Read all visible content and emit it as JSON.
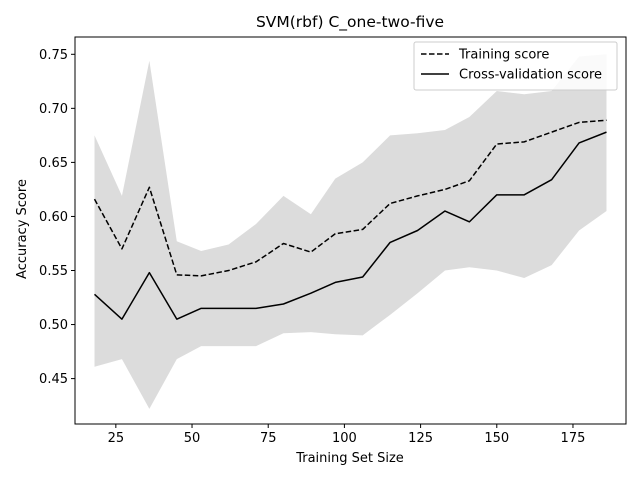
{
  "chart_data": {
    "type": "line",
    "title": "SVM(rbf) C_one-two-five",
    "xlabel": "Training Set Size",
    "ylabel": "Accuracy Score",
    "xlim": [
      11.6,
      192.4
    ],
    "ylim": [
      0.408,
      0.766
    ],
    "xticks": [
      25,
      50,
      75,
      100,
      125,
      150,
      175
    ],
    "yticks": [
      0.45,
      0.5,
      0.55,
      0.6,
      0.65,
      0.7,
      0.75
    ],
    "ytick_labels": [
      "0.45",
      "0.50",
      "0.55",
      "0.60",
      "0.65",
      "0.70",
      "0.75"
    ],
    "grid": false,
    "legend": "top-right",
    "x": [
      18,
      27,
      36,
      45,
      53,
      62,
      71,
      80,
      89,
      97,
      106,
      115,
      124,
      133,
      141,
      150,
      159,
      168,
      177,
      186
    ],
    "series": [
      {
        "name": "Training score",
        "style": "dashed",
        "color": "#000000",
        "values": [
          0.616,
          0.57,
          0.627,
          0.546,
          0.545,
          0.55,
          0.558,
          0.575,
          0.567,
          0.584,
          0.588,
          0.612,
          0.619,
          0.625,
          0.633,
          0.667,
          0.669,
          0.678,
          0.687,
          0.689
        ]
      },
      {
        "name": "Cross-validation score",
        "style": "solid",
        "color": "#000000",
        "values": [
          0.528,
          0.505,
          0.548,
          0.505,
          0.515,
          0.515,
          0.515,
          0.519,
          0.529,
          0.539,
          0.544,
          0.576,
          0.587,
          0.605,
          0.595,
          0.62,
          0.62,
          0.634,
          0.668,
          0.678
        ]
      }
    ],
    "band": {
      "color": "#dcdcdc",
      "upper": [
        0.675,
        0.619,
        0.744,
        0.577,
        0.568,
        0.574,
        0.593,
        0.619,
        0.602,
        0.635,
        0.65,
        0.675,
        0.677,
        0.68,
        0.692,
        0.716,
        0.713,
        0.716,
        0.748,
        0.75
      ],
      "lower": [
        0.461,
        0.468,
        0.422,
        0.468,
        0.48,
        0.48,
        0.48,
        0.492,
        0.493,
        0.491,
        0.49,
        0.509,
        0.529,
        0.55,
        0.553,
        0.55,
        0.543,
        0.555,
        0.587,
        0.605
      ]
    }
  }
}
